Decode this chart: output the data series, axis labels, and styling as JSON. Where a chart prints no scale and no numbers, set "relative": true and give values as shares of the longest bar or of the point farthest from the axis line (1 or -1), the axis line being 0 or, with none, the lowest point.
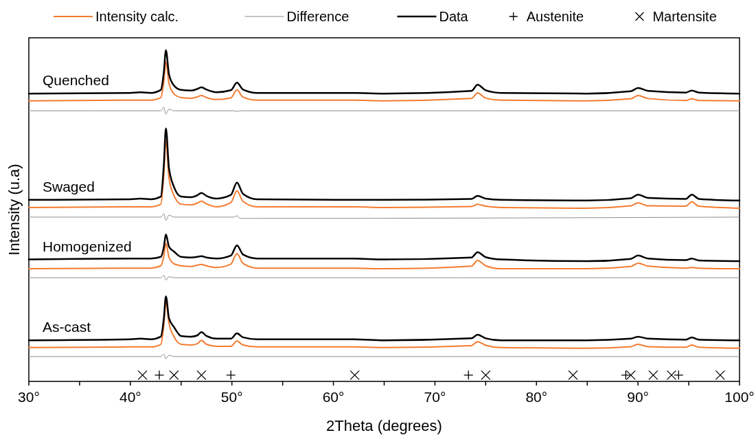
{
  "chart_data": {
    "type": "line",
    "xlabel": "2Theta (degrees)",
    "ylabel": "Intensity (u.a)",
    "relative": true,
    "legend": "top",
    "x": [
      30,
      40,
      41,
      42,
      43,
      43.3,
      43.5,
      43.8,
      44.3,
      45,
      46,
      46.6,
      47,
      47.5,
      48.5,
      49.9,
      50.5,
      51.1,
      52.5,
      62,
      65,
      73.6,
      74.2,
      75,
      76.5,
      85,
      89.3,
      90,
      91,
      94.7,
      95.3,
      96,
      100
    ],
    "xlim": [
      30,
      100
    ],
    "xticks": [
      {
        "value": 30,
        "label": "30°"
      },
      {
        "value": 35,
        "label": null
      },
      {
        "value": 40,
        "label": "40°"
      },
      {
        "value": 45,
        "label": null
      },
      {
        "value": 50,
        "label": "50°"
      },
      {
        "value": 55,
        "label": null
      },
      {
        "value": 60,
        "label": "60°"
      },
      {
        "value": 65,
        "label": null
      },
      {
        "value": 70,
        "label": "70°"
      },
      {
        "value": 75,
        "label": null
      },
      {
        "value": 80,
        "label": "80°"
      },
      {
        "value": 85,
        "label": null
      },
      {
        "value": 90,
        "label": "90°"
      },
      {
        "value": 95,
        "label": null
      },
      {
        "value": 100,
        "label": "100°"
      }
    ],
    "annotations": [
      "Quenched",
      "Swaged",
      "Homogenized",
      "As-cast"
    ],
    "series": [
      {
        "name": "Intensity calc.",
        "color": "#f47b2f",
        "values": [
          0.847,
          0.849,
          0.849,
          0.849,
          0.857,
          0.906,
          0.965,
          0.9,
          0.868,
          0.857,
          0.855,
          0.859,
          0.863,
          0.857,
          0.851,
          0.856,
          0.88,
          0.858,
          0.849,
          0.849,
          0.847,
          0.854,
          0.871,
          0.855,
          0.849,
          0.847,
          0.853,
          0.863,
          0.854,
          0.848,
          0.853,
          0.848,
          0.847
        ]
      },
      {
        "name": "Difference",
        "color": "#8c8c8c",
        "x": [
          30,
          43,
          43.3,
          43.5,
          43.8,
          44.3,
          50.2,
          50.5,
          50.8,
          100
        ],
        "values": [
          0.817,
          0.817,
          0.828,
          0.807,
          0.822,
          0.817,
          0.817,
          0.815,
          0.817,
          0.817
        ]
      },
      {
        "name": "Data",
        "color": "#000000",
        "values": [
          0.869,
          0.871,
          0.873,
          0.871,
          0.88,
          0.935,
          1,
          0.928,
          0.893,
          0.88,
          0.878,
          0.883,
          0.888,
          0.881,
          0.873,
          0.879,
          0.902,
          0.881,
          0.871,
          0.871,
          0.869,
          0.877,
          0.896,
          0.879,
          0.871,
          0.869,
          0.876,
          0.886,
          0.877,
          0.872,
          0.878,
          0.872,
          0.869
        ]
      },
      {
        "color": "#f47b2f",
        "values": [
          0.525,
          0.527,
          0.527,
          0.527,
          0.535,
          0.626,
          0.726,
          0.615,
          0.561,
          0.535,
          0.533,
          0.538,
          0.544,
          0.536,
          0.527,
          0.54,
          0.575,
          0.543,
          0.527,
          0.527,
          0.525,
          0.528,
          0.535,
          0.529,
          0.525,
          0.523,
          0.53,
          0.539,
          0.53,
          0.529,
          0.542,
          0.529,
          0.523
        ]
      },
      {
        "color": "#8c8c8c",
        "x": [
          30,
          43,
          43.3,
          43.5,
          43.8,
          44.3,
          50.2,
          50.5,
          50.8,
          100
        ],
        "values": [
          0.496,
          0.496,
          0.506,
          0.486,
          0.502,
          0.496,
          0.496,
          0.5,
          0.492,
          0.496
        ]
      },
      {
        "color": "#000000",
        "values": [
          0.548,
          0.55,
          0.552,
          0.55,
          0.558,
          0.656,
          0.764,
          0.645,
          0.587,
          0.558,
          0.556,
          0.562,
          0.569,
          0.56,
          0.552,
          0.563,
          0.6,
          0.566,
          0.55,
          0.548,
          0.548,
          0.551,
          0.56,
          0.552,
          0.548,
          0.546,
          0.553,
          0.564,
          0.554,
          0.551,
          0.564,
          0.551,
          0.546
        ]
      },
      {
        "color": "#f47b2f",
        "values": [
          0.34,
          0.342,
          0.342,
          0.342,
          0.349,
          0.379,
          0.417,
          0.375,
          0.355,
          0.349,
          0.347,
          0.351,
          0.353,
          0.349,
          0.344,
          0.354,
          0.386,
          0.356,
          0.342,
          0.342,
          0.34,
          0.348,
          0.365,
          0.349,
          0.34,
          0.34,
          0.347,
          0.357,
          0.348,
          0.342,
          0.344,
          0.342,
          0.34
        ]
      },
      {
        "color": "#8c8c8c",
        "x": [
          30,
          43,
          43.3,
          43.5,
          43.8,
          44.3,
          100
        ],
        "values": [
          0.313,
          0.313,
          0.32,
          0.306,
          0.316,
          0.313,
          0.313
        ]
      },
      {
        "color": "#000000",
        "values": [
          0.368,
          0.371,
          0.371,
          0.371,
          0.376,
          0.406,
          0.444,
          0.407,
          0.392,
          0.376,
          0.374,
          0.376,
          0.378,
          0.374,
          0.371,
          0.38,
          0.411,
          0.383,
          0.371,
          0.371,
          0.368,
          0.374,
          0.39,
          0.375,
          0.368,
          0.363,
          0.37,
          0.38,
          0.371,
          0.366,
          0.371,
          0.365,
          0.363
        ]
      },
      {
        "color": "#f47b2f",
        "values": [
          0.102,
          0.104,
          0.104,
          0.104,
          0.112,
          0.17,
          0.239,
          0.176,
          0.135,
          0.112,
          0.11,
          0.114,
          0.124,
          0.112,
          0.106,
          0.106,
          0.122,
          0.11,
          0.104,
          0.104,
          0.102,
          0.108,
          0.12,
          0.109,
          0.102,
          0.1,
          0.105,
          0.112,
          0.105,
          0.103,
          0.11,
          0.103,
          0.1
        ]
      },
      {
        "color": "#8c8c8c",
        "x": [
          30,
          43,
          43.3,
          43.5,
          43.8,
          44.3,
          100
        ],
        "values": [
          0.075,
          0.075,
          0.082,
          0.068,
          0.079,
          0.075,
          0.075
        ]
      },
      {
        "color": "#000000",
        "values": [
          0.124,
          0.127,
          0.129,
          0.127,
          0.135,
          0.191,
          0.257,
          0.191,
          0.164,
          0.137,
          0.135,
          0.139,
          0.149,
          0.137,
          0.129,
          0.129,
          0.145,
          0.133,
          0.127,
          0.127,
          0.124,
          0.13,
          0.141,
          0.13,
          0.124,
          0.124,
          0.129,
          0.135,
          0.129,
          0.126,
          0.133,
          0.126,
          0.124
        ]
      },
      {
        "name": "Austenite",
        "type": "scatter",
        "marker": "plus",
        "color": "#000000",
        "x": [
          42.85,
          49.9,
          73.3,
          88.8,
          94.0
        ],
        "values": [
          0.019,
          0.019,
          0.019,
          0.019,
          0.019
        ]
      },
      {
        "name": "Martensite",
        "type": "scatter",
        "marker": "cross",
        "color": "#000000",
        "x": [
          41.2,
          44.3,
          47.0,
          62.1,
          75.0,
          83.6,
          89.3,
          91.5,
          93.3,
          98.1
        ],
        "values": [
          0.019,
          0.019,
          0.019,
          0.019,
          0.019,
          0.019,
          0.019,
          0.019,
          0.019,
          0.019
        ]
      }
    ]
  }
}
